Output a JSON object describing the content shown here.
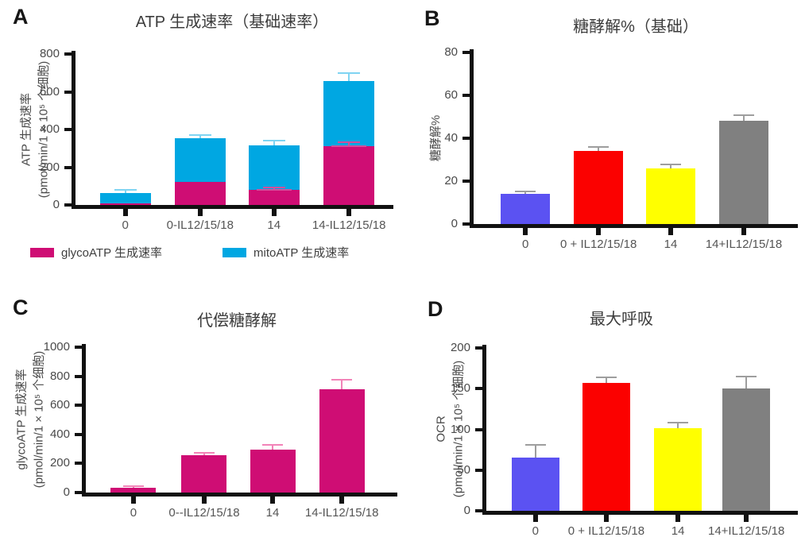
{
  "figure_background": "#ffffff",
  "axis_color": "#111111",
  "tick_label_color": "#4a4a4a",
  "category_label_color": "#555555",
  "chart_data": [
    {
      "panel": "A",
      "type": "stacked-bar",
      "title": "ATP 生成速率（基础速率）",
      "ylabel": "ATP 生成速率",
      "ylabel2": "(pmol/min/1 × 10⁵ 个细胞)",
      "ylim": [
        0,
        800
      ],
      "yticks": [
        0,
        200,
        400,
        600,
        800
      ],
      "categories": [
        "0",
        "0-IL12/15/18",
        "14",
        "14-IL12/15/18"
      ],
      "series": [
        {
          "name": "glycoATP 生成速率",
          "color": "#cf0d74",
          "error_color": "#d1509c",
          "values": [
            8,
            122,
            78,
            310
          ],
          "errors": [
            0,
            0,
            12,
            17
          ]
        },
        {
          "name": "mitoATP 生成速率",
          "color": "#00a7e2",
          "error_color": "#7fd4f2",
          "values": [
            57,
            232,
            237,
            345
          ],
          "errors": [
            10,
            12,
            20,
            40
          ]
        }
      ],
      "legend_position": "bottom",
      "grid": false
    },
    {
      "panel": "B",
      "type": "bar",
      "title": "糖酵解%（基础）",
      "ylabel": "糖酵解%",
      "ylabel2": "",
      "ylim": [
        0,
        80
      ],
      "yticks": [
        0,
        20,
        40,
        60,
        80
      ],
      "categories": [
        "0",
        "0 + IL12/15/18",
        "14",
        "14+IL12/15/18"
      ],
      "values": [
        14,
        34,
        26,
        48
      ],
      "errors": [
        1,
        1.5,
        1.5,
        2.5
      ],
      "bar_colors": [
        "#5b52f2",
        "#fb0100",
        "#ffff00",
        "#808080"
      ],
      "error_color": "#9e9e9e",
      "grid": false
    },
    {
      "panel": "C",
      "type": "bar",
      "title": "代偿糖酵解",
      "ylabel": "glycoATP 生成速率",
      "ylabel2": "(pmol/min/1 × 10⁵ 个细胞)",
      "ylim": [
        0,
        1000
      ],
      "yticks": [
        0,
        200,
        400,
        600,
        800,
        1000
      ],
      "categories": [
        "0",
        "0--IL12/15/18",
        "14",
        "14-IL12/15/18"
      ],
      "values": [
        35,
        255,
        295,
        710
      ],
      "errors": [
        5,
        12,
        25,
        62
      ],
      "bar_colors": [
        "#cf0d74",
        "#cf0d74",
        "#cf0d74",
        "#cf0d74"
      ],
      "error_color": "#f283b8",
      "grid": false
    },
    {
      "panel": "D",
      "type": "bar",
      "title": "最大呼吸",
      "ylabel": "OCR",
      "ylabel2": "(pmol/min/1 × 10⁵ 个细胞)",
      "ylim": [
        0,
        200
      ],
      "yticks": [
        0,
        50,
        100,
        150,
        200
      ],
      "categories": [
        "0",
        "0 + IL12/15/18",
        "14",
        "14+IL12/15/18"
      ],
      "values": [
        65,
        157,
        101,
        150
      ],
      "errors": [
        15,
        6,
        6,
        14
      ],
      "bar_colors": [
        "#5b52f2",
        "#fb0100",
        "#ffff00",
        "#808080"
      ],
      "error_color": "#9e9e9e",
      "grid": false
    }
  ]
}
